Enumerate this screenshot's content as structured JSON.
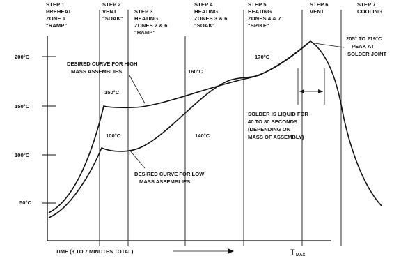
{
  "steps": [
    {
      "lines": [
        "STEP 1",
        "PREHEAT",
        "ZONE 1",
        "\"RAMP\""
      ]
    },
    {
      "lines": [
        "STEP 2",
        "VENT",
        "\"SOAK\""
      ]
    },
    {
      "lines": [
        "STEP 3",
        "HEATING",
        "ZONES 2 & 6",
        "\"RAMP\""
      ]
    },
    {
      "lines": [
        "STEP 4",
        "HEATING",
        "ZONES 3 & 6",
        "\"SOAK\""
      ]
    },
    {
      "lines": [
        "STEP 5",
        "HEATING",
        "ZONES 4 & 7",
        "\"SPIKE\""
      ]
    },
    {
      "lines": [
        "STEP 6",
        "VENT"
      ]
    },
    {
      "lines": [
        "STEP 7",
        "COOLING"
      ]
    }
  ],
  "y_labels": [
    "200°C",
    "150°C",
    "100°C",
    "50°C"
  ],
  "annotations": {
    "high_curve": [
      "DESIRED CURVE FOR HIGH",
      "MASS ASSEMBLIES"
    ],
    "low_curve": [
      "DESIRED CURVE FOR LOW",
      "MASS ASSEMBLIES"
    ],
    "t150": "150°C",
    "t100": "100°C",
    "t160": "160°C",
    "t140": "140°C",
    "t170": "170°C",
    "liquid": [
      "SOLDER IS LIQUID FOR",
      "40 TO 80 SECONDS",
      "(DEPENDING ON",
      "MASS OF ASSEMBLY)"
    ],
    "peak": [
      "205° TO 219°C",
      "PEAK AT",
      "SOLDER JOINT"
    ]
  },
  "x_axis": {
    "time_label": "TIME (3 TO 7 MINUTES TOTAL)",
    "tmax_label": "T",
    "tmax_sub": "MAX"
  }
}
